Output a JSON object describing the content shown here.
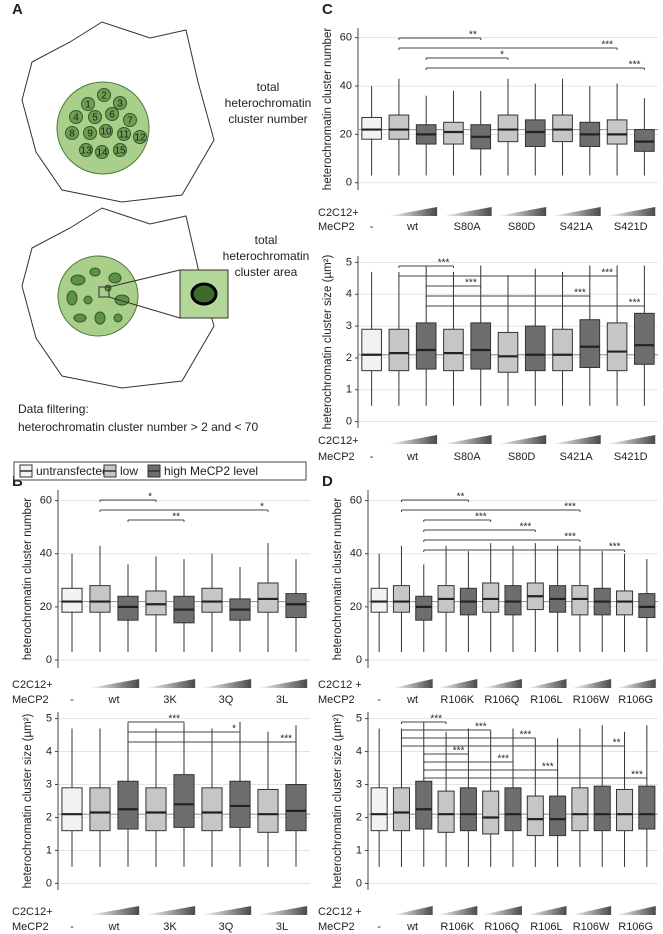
{
  "panel_labels": [
    "A",
    "B",
    "C",
    "D"
  ],
  "panel_a": {
    "number_label": [
      "total",
      "heterochromatin",
      "cluster number"
    ],
    "cluster_ids": [
      1,
      2,
      3,
      4,
      5,
      6,
      7,
      8,
      9,
      10,
      11,
      12,
      13,
      14,
      15
    ],
    "area_label": [
      "total",
      "heterochromatin",
      "cluster area"
    ],
    "filter_title": "Data filtering:",
    "filter_text": "heterochromatin cluster number > 2 and < 70"
  },
  "legend": [
    {
      "name": "untransfected",
      "color": "#f2f2f2"
    },
    {
      "name": "low",
      "color": "#c6c6c6"
    },
    {
      "name": "high MeCP2 level",
      "color": "#6e6e6e"
    }
  ],
  "chart_data": [
    {
      "type": "box",
      "y_label": "heterochromatin cluster number",
      "row_labels": [
        "C2C12+",
        "MeCP2"
      ],
      "groups": [
        "-",
        "wt",
        "S80A",
        "S80D",
        "S421A",
        "S421D"
      ],
      "ylim": [
        -3,
        64
      ],
      "yticks": [
        0,
        20,
        40,
        60
      ],
      "grid": true,
      "boxes": [
        {
          "low": 3,
          "q1": 18,
          "median": 22,
          "q3": 27,
          "high": 40
        },
        {
          "low": 3,
          "q1": 18,
          "median": 22,
          "q3": 28,
          "high": 43
        },
        {
          "low": 3,
          "q1": 16,
          "median": 20,
          "q3": 24,
          "high": 36
        },
        {
          "low": 3,
          "q1": 16,
          "median": 21,
          "q3": 25,
          "high": 38
        },
        {
          "low": 3,
          "q1": 14,
          "median": 19,
          "q3": 24,
          "high": 38
        },
        {
          "low": 3,
          "q1": 17,
          "median": 22,
          "q3": 28,
          "high": 43
        },
        {
          "low": 3,
          "q1": 15,
          "median": 21,
          "q3": 26,
          "high": 41
        },
        {
          "low": 3,
          "q1": 17,
          "median": 22,
          "q3": 28,
          "high": 43
        },
        {
          "low": 3,
          "q1": 15,
          "median": 20,
          "q3": 25,
          "high": 40
        },
        {
          "low": 3,
          "q1": 16,
          "median": 20,
          "q3": 26,
          "high": 41
        },
        {
          "low": 3,
          "q1": 13,
          "median": 17,
          "q3": 22,
          "high": 35
        }
      ],
      "brackets": [
        {
          "from": 1,
          "to": 4,
          "label": "**"
        },
        {
          "from": 1,
          "to": 9,
          "label": "***"
        },
        {
          "from": 2,
          "to": 5,
          "label": "*"
        },
        {
          "from": 2,
          "to": 10,
          "label": "***"
        }
      ]
    },
    {
      "type": "box",
      "y_label": "heterochromatin cluster size (µm²)",
      "row_labels": [
        "C2C12+",
        "MeCP2"
      ],
      "groups": [
        "-",
        "wt",
        "S80A",
        "S80D",
        "S421A",
        "S421D"
      ],
      "ylim": [
        -0.2,
        5.2
      ],
      "yticks": [
        0,
        1,
        2,
        3,
        4,
        5
      ],
      "grid": true,
      "boxes": [
        {
          "low": 0.5,
          "q1": 1.6,
          "median": 2.1,
          "q3": 2.9,
          "high": 4.7
        },
        {
          "low": 0.5,
          "q1": 1.6,
          "median": 2.15,
          "q3": 2.9,
          "high": 4.7
        },
        {
          "low": 0.5,
          "q1": 1.65,
          "median": 2.25,
          "q3": 3.1,
          "high": 4.9
        },
        {
          "low": 0.5,
          "q1": 1.6,
          "median": 2.15,
          "q3": 2.9,
          "high": 4.7
        },
        {
          "low": 0.5,
          "q1": 1.65,
          "median": 2.25,
          "q3": 3.1,
          "high": 4.9
        },
        {
          "low": 0.5,
          "q1": 1.55,
          "median": 2.05,
          "q3": 2.8,
          "high": 4.6
        },
        {
          "low": 0.5,
          "q1": 1.6,
          "median": 2.1,
          "q3": 3.0,
          "high": 4.8
        },
        {
          "low": 0.5,
          "q1": 1.6,
          "median": 2.1,
          "q3": 2.9,
          "high": 4.7
        },
        {
          "low": 0.5,
          "q1": 1.7,
          "median": 2.35,
          "q3": 3.2,
          "high": 4.9
        },
        {
          "low": 0.5,
          "q1": 1.6,
          "median": 2.2,
          "q3": 3.1,
          "high": 4.9
        },
        {
          "low": 0.5,
          "q1": 1.8,
          "median": 2.4,
          "q3": 3.4,
          "high": 4.9
        }
      ],
      "brackets": [
        {
          "from": 1,
          "to": 3,
          "label": "***"
        },
        {
          "from": 1,
          "to": 9,
          "label": "***"
        },
        {
          "from": 2,
          "to": 4,
          "label": "***"
        },
        {
          "from": 2,
          "to": 8,
          "label": "***"
        },
        {
          "from": 2,
          "to": 10,
          "label": "***"
        }
      ]
    },
    {
      "type": "box",
      "y_label": "heterochromatin cluster number",
      "row_labels": [
        "C2C12+",
        "MeCP2"
      ],
      "groups": [
        "-",
        "wt",
        "3K",
        "3Q",
        "3L"
      ],
      "ylim": [
        -3,
        64
      ],
      "yticks": [
        0,
        20,
        40,
        60
      ],
      "grid": true,
      "boxes": [
        {
          "low": 3,
          "q1": 18,
          "median": 22,
          "q3": 27,
          "high": 40
        },
        {
          "low": 3,
          "q1": 18,
          "median": 22,
          "q3": 28,
          "high": 43
        },
        {
          "low": 3,
          "q1": 15,
          "median": 20,
          "q3": 24,
          "high": 36
        },
        {
          "low": 3,
          "q1": 17,
          "median": 21,
          "q3": 26,
          "high": 39
        },
        {
          "low": 3,
          "q1": 14,
          "median": 19,
          "q3": 24,
          "high": 38
        },
        {
          "low": 3,
          "q1": 18,
          "median": 22,
          "q3": 27,
          "high": 40
        },
        {
          "low": 3,
          "q1": 15,
          "median": 19,
          "q3": 23,
          "high": 35
        },
        {
          "low": 3,
          "q1": 18,
          "median": 23,
          "q3": 29,
          "high": 44
        },
        {
          "low": 3,
          "q1": 16,
          "median": 21,
          "q3": 25,
          "high": 38
        }
      ],
      "brackets": [
        {
          "from": 1,
          "to": 3,
          "label": "*"
        },
        {
          "from": 1,
          "to": 7,
          "label": "*"
        },
        {
          "from": 2,
          "to": 4,
          "label": "**"
        }
      ]
    },
    {
      "type": "box",
      "y_label": "heterochromatin cluster size (µm²)",
      "row_labels": [
        "C2C12+",
        "MeCP2"
      ],
      "groups": [
        "-",
        "wt",
        "3K",
        "3Q",
        "3L"
      ],
      "ylim": [
        -0.2,
        5.2
      ],
      "yticks": [
        0,
        1,
        2,
        3,
        4,
        5
      ],
      "grid": true,
      "boxes": [
        {
          "low": 0.5,
          "q1": 1.6,
          "median": 2.1,
          "q3": 2.9,
          "high": 4.7
        },
        {
          "low": 0.5,
          "q1": 1.6,
          "median": 2.15,
          "q3": 2.9,
          "high": 4.7
        },
        {
          "low": 0.5,
          "q1": 1.65,
          "median": 2.25,
          "q3": 3.1,
          "high": 4.9
        },
        {
          "low": 0.5,
          "q1": 1.6,
          "median": 2.15,
          "q3": 2.9,
          "high": 4.7
        },
        {
          "low": 0.5,
          "q1": 1.7,
          "median": 2.4,
          "q3": 3.3,
          "high": 4.9
        },
        {
          "low": 0.5,
          "q1": 1.6,
          "median": 2.15,
          "q3": 2.9,
          "high": 4.7
        },
        {
          "low": 0.5,
          "q1": 1.7,
          "median": 2.35,
          "q3": 3.1,
          "high": 4.9
        },
        {
          "low": 0.5,
          "q1": 1.55,
          "median": 2.1,
          "q3": 2.85,
          "high": 4.6
        },
        {
          "low": 0.5,
          "q1": 1.6,
          "median": 2.2,
          "q3": 3.0,
          "high": 4.8
        }
      ],
      "brackets": [
        {
          "from": 2,
          "to": 4,
          "label": "***"
        },
        {
          "from": 2,
          "to": 6,
          "label": "*"
        },
        {
          "from": 2,
          "to": 8,
          "label": "***"
        }
      ]
    },
    {
      "type": "box",
      "y_label": "heterochromatin cluster number",
      "row_labels": [
        "C2C12 +",
        "MeCP2"
      ],
      "groups": [
        "-",
        "wt",
        "R106K",
        "R106Q",
        "R106L",
        "R106W",
        "R106G"
      ],
      "ylim": [
        -3,
        64
      ],
      "yticks": [
        0,
        20,
        40,
        60
      ],
      "grid": true,
      "boxes": [
        {
          "low": 3,
          "q1": 18,
          "median": 22,
          "q3": 27,
          "high": 40
        },
        {
          "low": 3,
          "q1": 18,
          "median": 22,
          "q3": 28,
          "high": 43
        },
        {
          "low": 3,
          "q1": 15,
          "median": 20,
          "q3": 24,
          "high": 36
        },
        {
          "low": 3,
          "q1": 18,
          "median": 23,
          "q3": 28,
          "high": 43
        },
        {
          "low": 3,
          "q1": 17,
          "median": 22,
          "q3": 27,
          "high": 41
        },
        {
          "low": 3,
          "q1": 18,
          "median": 23,
          "q3": 29,
          "high": 44
        },
        {
          "low": 3,
          "q1": 17,
          "median": 22,
          "q3": 28,
          "high": 43
        },
        {
          "low": 3,
          "q1": 19,
          "median": 24,
          "q3": 29,
          "high": 44
        },
        {
          "low": 3,
          "q1": 18,
          "median": 23,
          "q3": 28,
          "high": 43
        },
        {
          "low": 3,
          "q1": 17,
          "median": 23,
          "q3": 28,
          "high": 43
        },
        {
          "low": 3,
          "q1": 17,
          "median": 22,
          "q3": 27,
          "high": 41
        },
        {
          "low": 3,
          "q1": 17,
          "median": 22,
          "q3": 26,
          "high": 40
        },
        {
          "low": 3,
          "q1": 16,
          "median": 20,
          "q3": 25,
          "high": 38
        }
      ],
      "brackets": [
        {
          "from": 1,
          "to": 4,
          "label": "**"
        },
        {
          "from": 1,
          "to": 9,
          "label": "***"
        },
        {
          "from": 2,
          "to": 5,
          "label": "***"
        },
        {
          "from": 2,
          "to": 7,
          "label": "***"
        },
        {
          "from": 2,
          "to": 9,
          "label": "***"
        },
        {
          "from": 2,
          "to": 11,
          "label": "***"
        }
      ]
    },
    {
      "type": "box",
      "y_label": "heterochromatin cluster size (µm²)",
      "row_labels": [
        "C2C12 +",
        "MeCP2"
      ],
      "groups": [
        "-",
        "wt",
        "R106K",
        "R106Q",
        "R106L",
        "R106W",
        "R106G"
      ],
      "ylim": [
        -0.2,
        5.2
      ],
      "yticks": [
        0,
        1,
        2,
        3,
        4,
        5
      ],
      "grid": true,
      "boxes": [
        {
          "low": 0.5,
          "q1": 1.6,
          "median": 2.1,
          "q3": 2.9,
          "high": 4.7
        },
        {
          "low": 0.5,
          "q1": 1.6,
          "median": 2.15,
          "q3": 2.9,
          "high": 4.7
        },
        {
          "low": 0.5,
          "q1": 1.65,
          "median": 2.25,
          "q3": 3.1,
          "high": 4.9
        },
        {
          "low": 0.5,
          "q1": 1.55,
          "median": 2.1,
          "q3": 2.8,
          "high": 4.6
        },
        {
          "low": 0.5,
          "q1": 1.6,
          "median": 2.1,
          "q3": 2.9,
          "high": 4.7
        },
        {
          "low": 0.5,
          "q1": 1.5,
          "median": 2.0,
          "q3": 2.8,
          "high": 4.6
        },
        {
          "low": 0.5,
          "q1": 1.6,
          "median": 2.1,
          "q3": 2.9,
          "high": 4.7
        },
        {
          "low": 0.5,
          "q1": 1.45,
          "median": 1.95,
          "q3": 2.65,
          "high": 4.4
        },
        {
          "low": 0.5,
          "q1": 1.45,
          "median": 1.95,
          "q3": 2.65,
          "high": 4.4
        },
        {
          "low": 0.5,
          "q1": 1.6,
          "median": 2.1,
          "q3": 2.9,
          "high": 4.7
        },
        {
          "low": 0.5,
          "q1": 1.6,
          "median": 2.1,
          "q3": 2.95,
          "high": 4.8
        },
        {
          "low": 0.5,
          "q1": 1.6,
          "median": 2.1,
          "q3": 2.85,
          "high": 4.6
        },
        {
          "low": 0.5,
          "q1": 1.65,
          "median": 2.1,
          "q3": 2.95,
          "high": 4.8
        }
      ],
      "brackets": [
        {
          "from": 1,
          "to": 3,
          "label": "***"
        },
        {
          "from": 1,
          "to": 5,
          "label": "***"
        },
        {
          "from": 1,
          "to": 7,
          "label": "***"
        },
        {
          "from": 1,
          "to": 11,
          "label": "**"
        },
        {
          "from": 2,
          "to": 4,
          "label": "***"
        },
        {
          "from": 2,
          "to": 6,
          "label": "***"
        },
        {
          "from": 2,
          "to": 8,
          "label": "***"
        },
        {
          "from": 2,
          "to": 12,
          "label": "***"
        }
      ]
    }
  ]
}
